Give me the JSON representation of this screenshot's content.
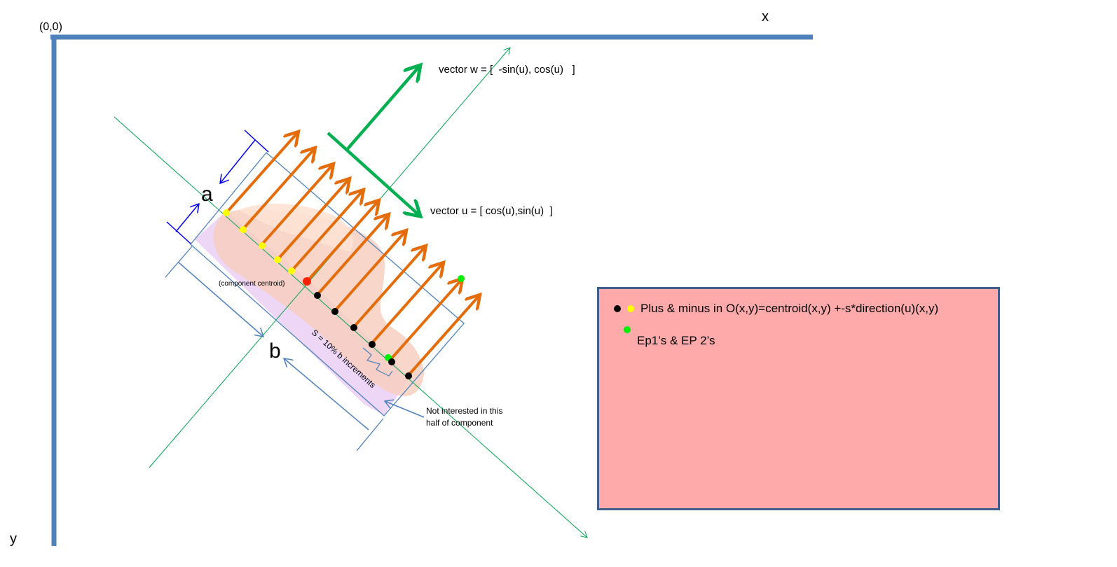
{
  "axes": {
    "origin_label": "(0,0)",
    "x_label": "x",
    "y_label": "y"
  },
  "vectors": {
    "w_label": "vector w = [  -sin(u), cos(u)   ]",
    "u_label": "vector u = [ cos(u),sin(u)  ]"
  },
  "annotations": {
    "a_label": "a",
    "b_label": "b",
    "centroid_label": "(component centroid)",
    "increment_label": "S = 10% b increments",
    "not_interested_line1": "Not interested in this",
    "not_interested_line2": "half of component"
  },
  "legend": {
    "row1_text": "Plus & minus in O(x,y)=centroid(x,y) +-s*direction(u)(x,y)",
    "row2_text": "Ep1’s & EP 2’s"
  },
  "colors": {
    "axis": "#4f81bd",
    "orange_arrow": "#e46c0a",
    "green_vector": "#00b050",
    "thin_green": "#00a550",
    "bracket_blue": "#0000ee",
    "box_outline": "#4f81bd",
    "legend_fill": "#ffaaaa",
    "yellow_dot": "#ffff00",
    "black_dot": "#000000",
    "red_dot": "#ff0000",
    "green_dot": "#00ee00"
  }
}
